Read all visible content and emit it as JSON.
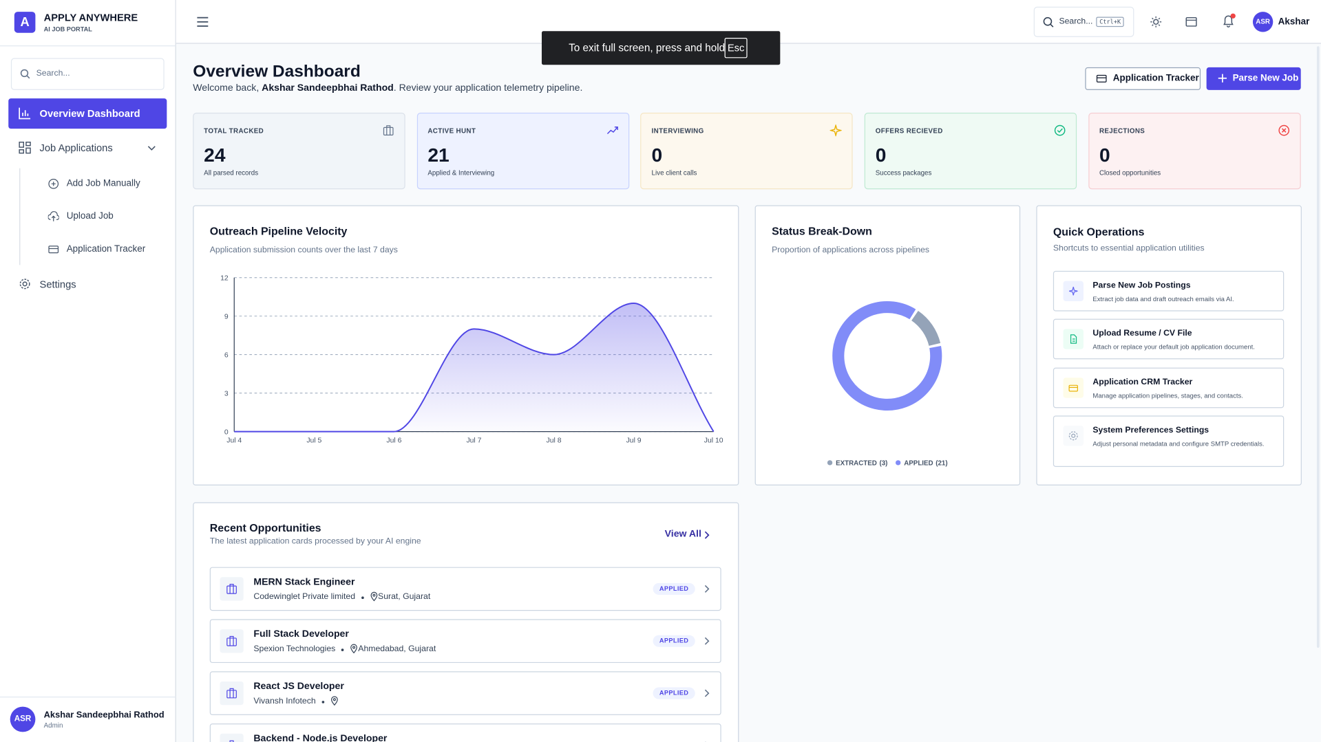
{
  "sidebar": {
    "logo": "A",
    "brand": "APPLY ANYWHERE",
    "tagline": "AI JOB PORTAL",
    "search": "Search...",
    "nav": [
      "Overview Dashboard",
      "Job Applications"
    ],
    "subnav": [
      "Add Job Manually",
      "Upload Job",
      "Application Tracker"
    ],
    "settings": "Settings",
    "user": {
      "initials": "ASR",
      "name": "Akshar Sandeepbhai Rathod",
      "role": "Admin"
    }
  },
  "header": {
    "search": "Search...",
    "shortcut": "Ctrl+K",
    "initials": "ASR",
    "name": "Akshar"
  },
  "toast": {
    "text": "To exit full screen, press and hold",
    "key": "Esc"
  },
  "page": {
    "title": "Overview Dashboard",
    "welcome": "Welcome back, ",
    "user": "Akshar Sandeepbhai Rathod",
    "welcome_end": ". Review your application telemetry pipeline.",
    "buttons": [
      "Application Tracker",
      "Parse New Job"
    ]
  },
  "stats": [
    {
      "label": "TOTAL TRACKED",
      "value": "24",
      "caption": "All parsed records"
    },
    {
      "label": "ACTIVE HUNT",
      "value": "21",
      "caption": "Applied & Interviewing"
    },
    {
      "label": "INTERVIEWING",
      "value": "0",
      "caption": "Live client calls"
    },
    {
      "label": "OFFERS RECIEVED",
      "value": "0",
      "caption": "Success packages"
    },
    {
      "label": "REJECTIONS",
      "value": "0",
      "caption": "Closed opportunities"
    }
  ],
  "chart_data": [
    {
      "type": "line",
      "title": "Outreach Pipeline Velocity",
      "subtitle": "Application submission counts over the last 7 days",
      "categories": [
        "Jul 4",
        "Jul 5",
        "Jul 6",
        "Jul 7",
        "Jul 8",
        "Jul 9",
        "Jul 10"
      ],
      "values": [
        0,
        0,
        0,
        8,
        6,
        10,
        0
      ],
      "color": "#4f46e5",
      "ylim": [
        0,
        12
      ],
      "yticks": [
        0,
        3,
        6,
        9,
        12
      ],
      "grid": true
    },
    {
      "type": "pie",
      "title": "Status Break-Down",
      "subtitle": "Proportion of applications across pipelines",
      "categories": [
        "EXTRACTED",
        "APPLIED"
      ],
      "values": [
        3,
        21
      ],
      "value_labels": [
        "(3)",
        "(21)"
      ],
      "colors": [
        "#94a3b8",
        "#818cf8"
      ]
    }
  ],
  "quick_ops": {
    "title": "Quick Operations",
    "subtitle": "Shortcuts to essential application utilities",
    "items": [
      {
        "title": "Parse New Job Postings",
        "desc": "Extract job data and draft outreach emails via AI."
      },
      {
        "title": "Upload Resume / CV File",
        "desc": "Attach or replace your default job application document."
      },
      {
        "title": "Application CRM Tracker",
        "desc": "Manage application pipelines, stages, and contacts."
      },
      {
        "title": "System Preferences Settings",
        "desc": "Adjust personal metadata and configure SMTP credentials."
      }
    ]
  },
  "recent": {
    "title": "Recent Opportunities",
    "subtitle": "The latest application cards processed by your AI engine",
    "link": "View All",
    "items": [
      {
        "title": "MERN Stack Engineer",
        "company": "Codewinglet Private limited",
        "location": "Surat, Gujarat",
        "status": "APPLIED"
      },
      {
        "title": "Full Stack Developer",
        "company": "Spexion Technologies",
        "location": "Ahmedabad, Gujarat",
        "status": "APPLIED"
      },
      {
        "title": "React JS Developer",
        "company": "Vivansh Infotech",
        "status": "APPLIED"
      },
      {
        "title": "Backend - Node.js Developer"
      }
    ]
  }
}
